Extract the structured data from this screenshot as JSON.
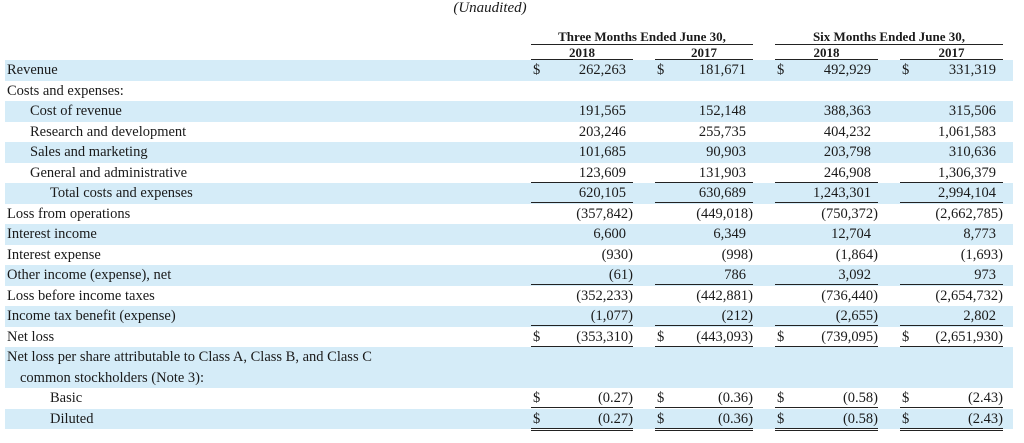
{
  "caption": "(Unaudited)",
  "headers": {
    "periods": [
      "Three Months Ended June 30,",
      "Six Months Ended June 30,"
    ],
    "years": [
      "2018",
      "2017",
      "2018",
      "2017"
    ]
  },
  "rows": [
    {
      "label": "Revenue",
      "indent": 0,
      "dollar": true,
      "values": [
        "262,263",
        "181,671",
        "492,929",
        "331,319"
      ]
    },
    {
      "label": "Costs and expenses:",
      "indent": 0,
      "dollar": false,
      "values": []
    },
    {
      "label": "Cost of revenue",
      "indent": 1,
      "dollar": false,
      "values": [
        "191,565",
        "152,148",
        "388,363",
        "315,506"
      ]
    },
    {
      "label": "Research and development",
      "indent": 1,
      "dollar": false,
      "values": [
        "203,246",
        "255,735",
        "404,232",
        "1,061,583"
      ]
    },
    {
      "label": "Sales and marketing",
      "indent": 1,
      "dollar": false,
      "values": [
        "101,685",
        "90,903",
        "203,798",
        "310,636"
      ]
    },
    {
      "label": "General and administrative",
      "indent": 1,
      "dollar": false,
      "values": [
        "123,609",
        "131,903",
        "246,908",
        "1,306,379"
      ],
      "rule": "single"
    },
    {
      "label": "Total costs and expenses",
      "indent": 2,
      "dollar": false,
      "values": [
        "620,105",
        "630,689",
        "1,243,301",
        "2,994,104"
      ],
      "rule": "single"
    },
    {
      "label": "Loss from operations",
      "indent": 0,
      "dollar": false,
      "values": [
        "(357,842)",
        "(449,018)",
        "(750,372)",
        "(2,662,785)"
      ]
    },
    {
      "label": "Interest income",
      "indent": 0,
      "dollar": false,
      "values": [
        "6,600",
        "6,349",
        "12,704",
        "8,773"
      ]
    },
    {
      "label": "Interest expense",
      "indent": 0,
      "dollar": false,
      "values": [
        "(930)",
        "(998)",
        "(1,864)",
        "(1,693)"
      ]
    },
    {
      "label": "Other income (expense), net",
      "indent": 0,
      "dollar": false,
      "values": [
        "(61)",
        "786",
        "3,092",
        "973"
      ],
      "rule": "single"
    },
    {
      "label": "Loss before income taxes",
      "indent": 0,
      "dollar": false,
      "values": [
        "(352,233)",
        "(442,881)",
        "(736,440)",
        "(2,654,732)"
      ]
    },
    {
      "label": "Income tax benefit (expense)",
      "indent": 0,
      "dollar": false,
      "values": [
        "(1,077)",
        "(212)",
        "(2,655)",
        "2,802"
      ],
      "rule": "single"
    },
    {
      "label": "Net loss",
      "indent": 0,
      "dollar": true,
      "values": [
        "(353,310)",
        "(443,093)",
        "(739,095)",
        "(2,651,930)"
      ],
      "rule": "double"
    },
    {
      "label": "Net loss per share attributable to Class A, Class B, and Class C",
      "label2": "common stockholders (Note 3):",
      "indent": 0,
      "dollar": false,
      "values": [],
      "tall": true
    },
    {
      "label": "Basic",
      "indent": 2,
      "dollar": true,
      "values": [
        "(0.27)",
        "(0.36)",
        "(0.58)",
        "(2.43)"
      ],
      "rule": "double"
    },
    {
      "label": "Diluted",
      "indent": 2,
      "dollar": true,
      "values": [
        "(0.27)",
        "(0.36)",
        "(0.58)",
        "(2.43)"
      ],
      "rule": "double"
    }
  ],
  "currency_symbol": "$",
  "colors": {
    "shading": "#d5ecf8",
    "text": "#1a1a1a"
  }
}
